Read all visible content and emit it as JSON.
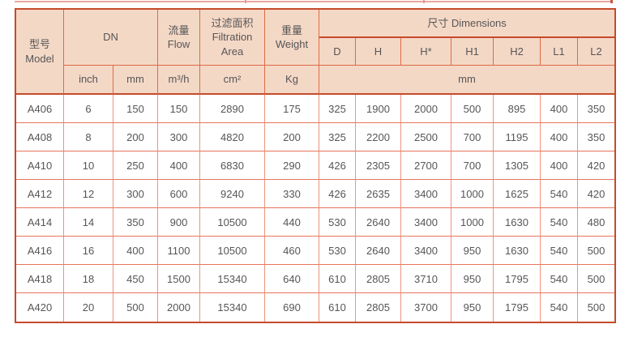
{
  "table": {
    "header": {
      "model": "型号\nModel",
      "dn": "DN",
      "flow": "流量\nFlow",
      "area": "过滤面积\nFiltration\nArea",
      "weight": "重量\nWeight",
      "dimensions": "尺寸 Dimensions",
      "dims": [
        "D",
        "H",
        "H*",
        "H1",
        "H2",
        "L1",
        "L2"
      ],
      "units": {
        "inch": "inch",
        "mm": "mm",
        "flow": "m³/h",
        "area": "cm²",
        "weight": "Kg",
        "dims": "mm"
      }
    },
    "rows": [
      [
        "A406",
        "6",
        "150",
        "150",
        "2890",
        "175",
        "325",
        "1900",
        "2000",
        "500",
        "895",
        "400",
        "350"
      ],
      [
        "A408",
        "8",
        "200",
        "300",
        "4820",
        "200",
        "325",
        "2200",
        "2500",
        "700",
        "1195",
        "400",
        "350"
      ],
      [
        "A410",
        "10",
        "250",
        "400",
        "6830",
        "290",
        "426",
        "2305",
        "2700",
        "700",
        "1305",
        "400",
        "420"
      ],
      [
        "A412",
        "12",
        "300",
        "600",
        "9240",
        "330",
        "426",
        "2635",
        "3400",
        "1000",
        "1625",
        "540",
        "420"
      ],
      [
        "A414",
        "14",
        "350",
        "900",
        "10500",
        "440",
        "530",
        "2640",
        "3400",
        "1000",
        "1630",
        "540",
        "480"
      ],
      [
        "A416",
        "16",
        "400",
        "1100",
        "10500",
        "460",
        "530",
        "2640",
        "3400",
        "950",
        "1630",
        "540",
        "500"
      ],
      [
        "A418",
        "18",
        "450",
        "1500",
        "15340",
        "640",
        "610",
        "2805",
        "3710",
        "950",
        "1795",
        "540",
        "500"
      ],
      [
        "A420",
        "20",
        "500",
        "2000",
        "15340",
        "690",
        "610",
        "2805",
        "3700",
        "950",
        "1795",
        "540",
        "500"
      ]
    ],
    "colors": {
      "header_bg": "#f4d8c6",
      "border_dark": "#c54b2b",
      "border_orange": "#de6b46",
      "border_light": "#f0927f",
      "text": "#565656"
    }
  }
}
